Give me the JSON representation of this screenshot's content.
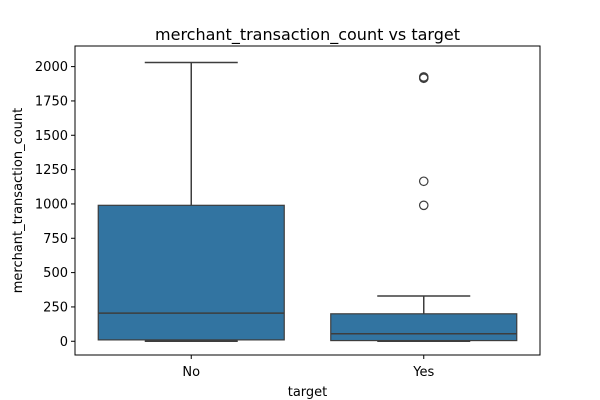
{
  "chart_data": {
    "type": "box",
    "title": "merchant_transaction_count vs target",
    "xlabel": "target",
    "ylabel": "merchant_transaction_count",
    "categories": [
      "No",
      "Yes"
    ],
    "ylim": [
      -100,
      2150
    ],
    "yticks": [
      0,
      250,
      500,
      750,
      1000,
      1250,
      1500,
      1750,
      2000
    ],
    "grid": false,
    "box_color": "#3274a1",
    "line_color": "#3d3d3d",
    "boxes": [
      {
        "category": "No",
        "whisker_low": 0,
        "q1": 10,
        "median": 205,
        "q3": 990,
        "whisker_high": 2030,
        "outliers": []
      },
      {
        "category": "Yes",
        "whisker_low": 0,
        "q1": 5,
        "median": 55,
        "q3": 200,
        "whisker_high": 330,
        "outliers": [
          990,
          1165,
          1915,
          1920,
          1925
        ]
      }
    ]
  }
}
